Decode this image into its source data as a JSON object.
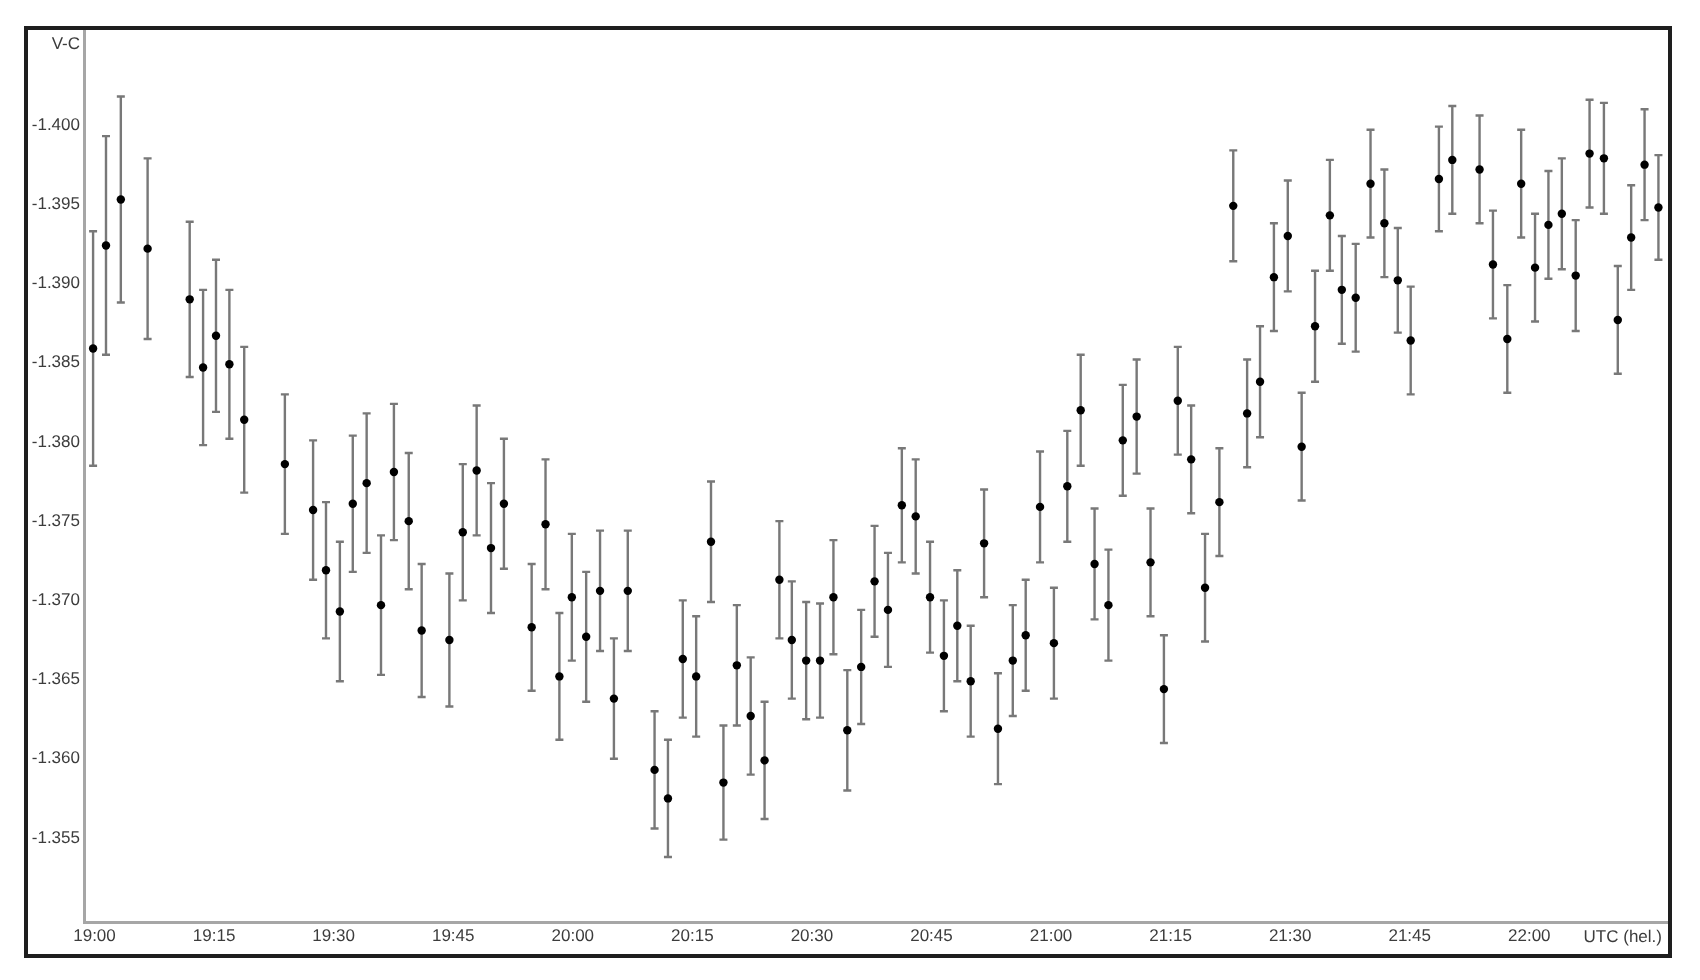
{
  "chart_data": {
    "type": "scatter",
    "xlabel": "UTC (hel.)",
    "ylabel": "V-C",
    "color": "#000000",
    "marker": "circle",
    "xlim": [
      18.978,
      22.29
    ],
    "ylim": [
      -1.3497,
      -1.406
    ],
    "xticks": [
      {
        "value": 19,
        "label": "19:00"
      },
      {
        "value": 19.25,
        "label": "19:15"
      },
      {
        "value": 19.5,
        "label": "19:30"
      },
      {
        "value": 19.75,
        "label": "19:45"
      },
      {
        "value": 20,
        "label": "20:00"
      },
      {
        "value": 20.25,
        "label": "20:15"
      },
      {
        "value": 20.5,
        "label": "20:30"
      },
      {
        "value": 20.75,
        "label": "20:45"
      },
      {
        "value": 21,
        "label": "21:00"
      },
      {
        "value": 21.25,
        "label": "21:15"
      },
      {
        "value": 21.5,
        "label": "21:30"
      },
      {
        "value": 21.75,
        "label": "21:45"
      },
      {
        "value": 22,
        "label": "22:00"
      }
    ],
    "yticks": [
      {
        "value": -1.4,
        "label": "-1.400"
      },
      -1.395,
      {
        "value": -1.39,
        "label": "-1.390"
      },
      -1.385,
      {
        "value": -1.38,
        "label": "-1.380"
      },
      -1.375,
      {
        "value": -1.37,
        "label": "-1.370"
      },
      -1.365,
      {
        "value": -1.36,
        "label": "-1.360"
      },
      -1.355
    ],
    "x": [
      18.997,
      19.024,
      19.055,
      19.111,
      19.199,
      19.227,
      19.254,
      19.282,
      19.313,
      19.398,
      19.457,
      19.484,
      19.513,
      19.54,
      19.569,
      19.599,
      19.626,
      19.657,
      19.684,
      19.742,
      19.77,
      19.799,
      19.829,
      19.856,
      19.914,
      19.943,
      19.972,
      19.998,
      20.028,
      20.057,
      20.086,
      20.115,
      20.171,
      20.199,
      20.23,
      20.258,
      20.289,
      20.315,
      20.343,
      20.372,
      20.401,
      20.432,
      20.458,
      20.488,
      20.517,
      20.545,
      20.574,
      20.603,
      20.631,
      20.659,
      20.688,
      20.717,
      20.747,
      20.776,
      20.804,
      20.832,
      20.86,
      20.889,
      20.92,
      20.947,
      20.977,
      21.006,
      21.034,
      21.062,
      21.091,
      21.12,
      21.15,
      21.179,
      21.208,
      21.236,
      21.265,
      21.293,
      21.322,
      21.352,
      21.381,
      21.41,
      21.437,
      21.466,
      21.495,
      21.524,
      21.552,
      21.583,
      21.608,
      21.637,
      21.668,
      21.697,
      21.725,
      21.752,
      21.811,
      21.839,
      21.896,
      21.924,
      21.954,
      21.983,
      22.012,
      22.04,
      22.068,
      22.097,
      22.126,
      22.156,
      22.185,
      22.213,
      22.241,
      22.27
    ],
    "values": [
      -1.3859,
      -1.3924,
      -1.3953,
      -1.3922,
      -1.389,
      -1.3847,
      -1.3867,
      -1.3849,
      -1.3814,
      -1.3786,
      -1.3757,
      -1.3719,
      -1.3693,
      -1.3761,
      -1.3774,
      -1.3697,
      -1.3781,
      -1.375,
      -1.3681,
      -1.3675,
      -1.3743,
      -1.3782,
      -1.3733,
      -1.3761,
      -1.3683,
      -1.3748,
      -1.3652,
      -1.3702,
      -1.3677,
      -1.3706,
      -1.3638,
      -1.3706,
      -1.3593,
      -1.3575,
      -1.3663,
      -1.3652,
      -1.3737,
      -1.3585,
      -1.3659,
      -1.3627,
      -1.3599,
      -1.3713,
      -1.3675,
      -1.3662,
      -1.3662,
      -1.3702,
      -1.3618,
      -1.3658,
      -1.3712,
      -1.3694,
      -1.376,
      -1.3753,
      -1.3702,
      -1.3665,
      -1.3684,
      -1.3649,
      -1.3736,
      -1.3619,
      -1.3662,
      -1.3678,
      -1.3759,
      -1.3673,
      -1.3772,
      -1.382,
      -1.3723,
      -1.3697,
      -1.3801,
      -1.3816,
      -1.3724,
      -1.3644,
      -1.3826,
      -1.3789,
      -1.3708,
      -1.3762,
      -1.3949,
      -1.3818,
      -1.3838,
      -1.3904,
      -1.393,
      -1.3797,
      -1.3873,
      -1.3943,
      -1.3896,
      -1.3891,
      -1.3963,
      -1.3938,
      -1.3902,
      -1.3864,
      -1.3966,
      -1.3978,
      -1.3972,
      -1.3912,
      -1.3865,
      -1.3963,
      -1.391,
      -1.3937,
      -1.3944,
      -1.3905,
      -1.3982,
      -1.3979,
      -1.3877,
      -1.3929,
      -1.3975,
      -1.3948
    ],
    "errors": [
      0.0074,
      0.0069,
      0.0065,
      0.0057,
      0.0049,
      0.0049,
      0.0048,
      0.0047,
      0.0046,
      0.0044,
      0.0044,
      0.0043,
      0.0044,
      0.0043,
      0.0044,
      0.0044,
      0.0043,
      0.0043,
      0.0042,
      0.0042,
      0.0043,
      0.0041,
      0.0041,
      0.0041,
      0.004,
      0.0041,
      0.004,
      0.004,
      0.0041,
      0.0038,
      0.0038,
      0.0038,
      0.0037,
      0.0037,
      0.0037,
      0.0038,
      0.0038,
      0.0036,
      0.0038,
      0.0037,
      0.0037,
      0.0037,
      0.0037,
      0.0037,
      0.0036,
      0.0036,
      0.0038,
      0.0036,
      0.0035,
      0.0036,
      0.0036,
      0.0036,
      0.0035,
      0.0035,
      0.0035,
      0.0035,
      0.0034,
      0.0035,
      0.0035,
      0.0035,
      0.0035,
      0.0035,
      0.0035,
      0.0035,
      0.0035,
      0.0035,
      0.0035,
      0.0036,
      0.0034,
      0.0034,
      0.0034,
      0.0034,
      0.0034,
      0.0034,
      0.0035,
      0.0034,
      0.0035,
      0.0034,
      0.0035,
      0.0034,
      0.0035,
      0.0035,
      0.0034,
      0.0034,
      0.0034,
      0.0034,
      0.0033,
      0.0034,
      0.0033,
      0.0034,
      0.0034,
      0.0034,
      0.0034,
      0.0034,
      0.0034,
      0.0034,
      0.0035,
      0.0035,
      0.0034,
      0.0035,
      0.0034,
      0.0033,
      0.0035,
      0.0033
    ]
  }
}
